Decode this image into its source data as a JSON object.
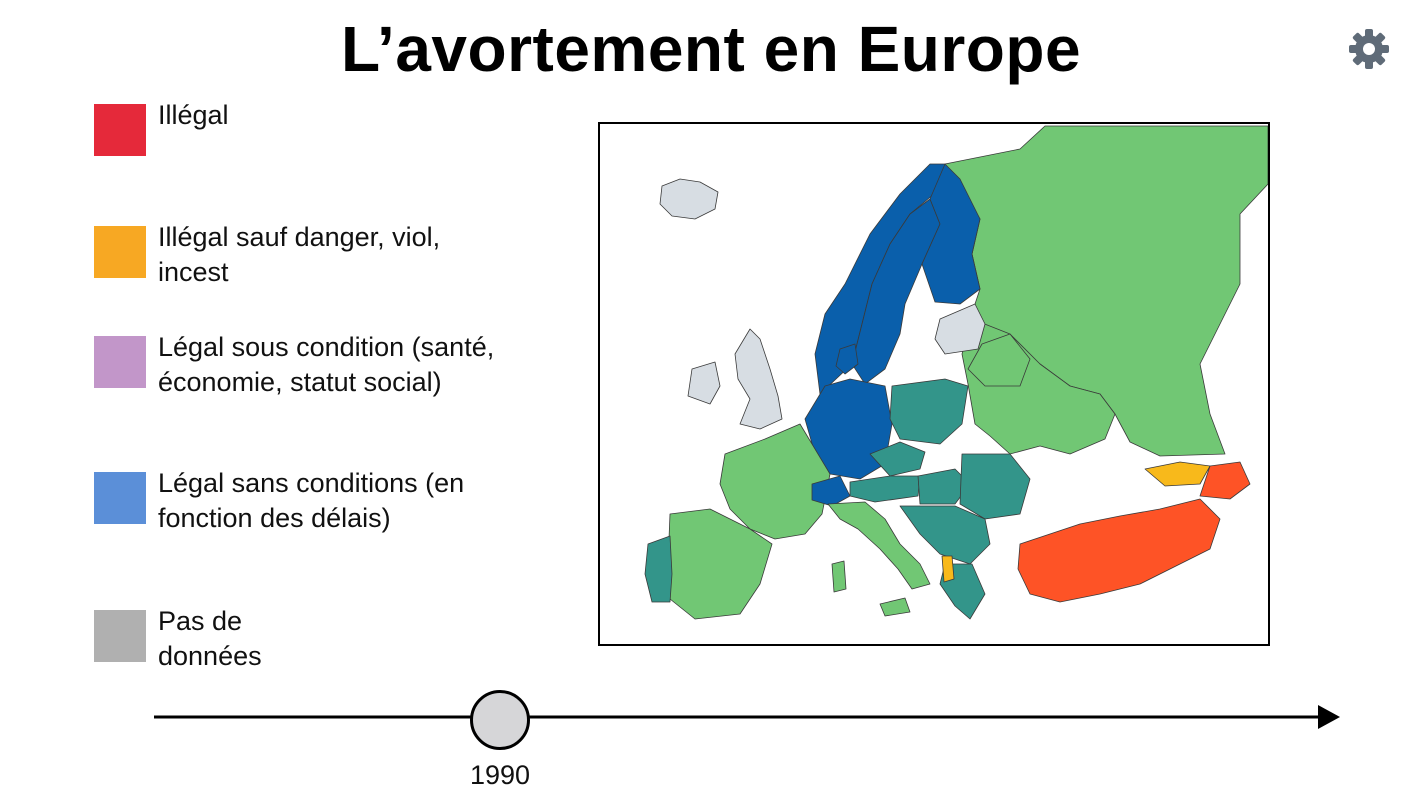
{
  "title": "L’avortement en Europe",
  "settings_icon": "gear-icon",
  "legend": [
    {
      "key": "illegal",
      "label": "Illégal",
      "color": "#e5293a"
    },
    {
      "key": "danger",
      "label": "Illégal sauf danger, viol, incest",
      "color": "#f7a823"
    },
    {
      "key": "conditional",
      "label": "Légal sous condition (santé, économie, statut social)",
      "color": "#c296c9"
    },
    {
      "key": "unconditional",
      "label": "Légal sans conditions (en fonction des délais)",
      "color": "#5b8fd8"
    },
    {
      "key": "nodata",
      "label": "Pas de données",
      "color": "#b0b0b0"
    }
  ],
  "map_colors": {
    "light_green": "#71c774",
    "teal": "#33958a",
    "dark_blue": "#0a5fab",
    "light_grey": "#d7dde3",
    "orange_red": "#fe5326",
    "yellow": "#f8b91b"
  },
  "timeline": {
    "year": "1990",
    "arrow_icon": "arrow-right-icon"
  }
}
